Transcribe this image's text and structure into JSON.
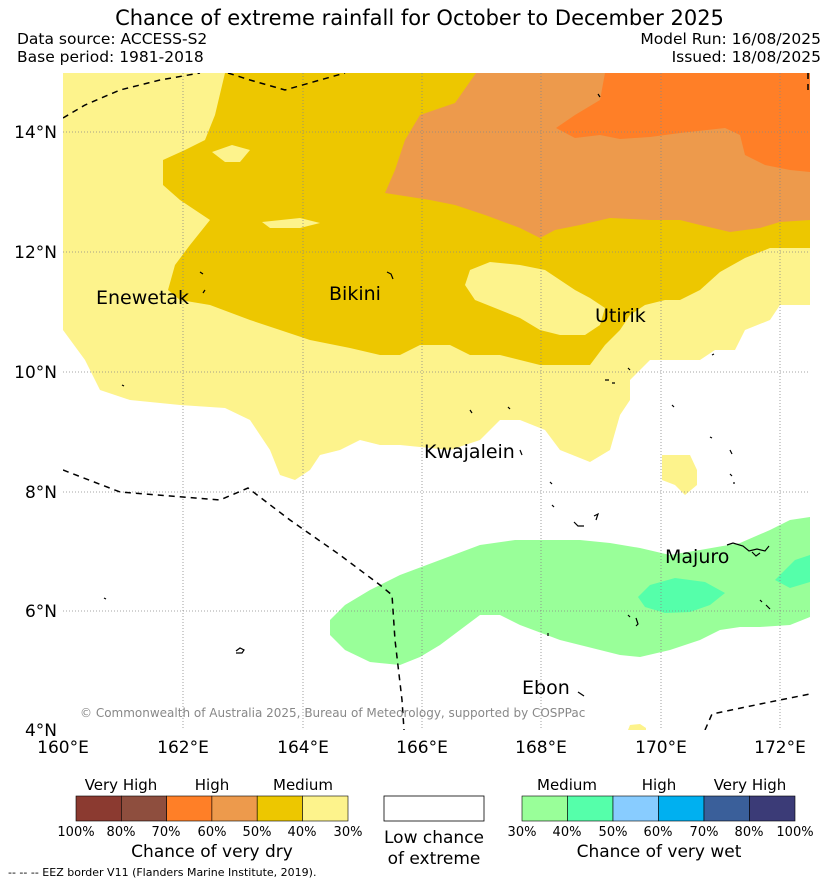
{
  "header": {
    "title": "Chance of extreme rainfall for October to December 2025",
    "data_source": "Data source: ACCESS-S2",
    "base_period": "Base period: 1981-2018",
    "model_run": "Model Run: 16/08/2025",
    "issued": "Issued: 18/08/2025"
  },
  "map": {
    "lat_ticks": [
      "14°N",
      "12°N",
      "10°N",
      "8°N",
      "6°N",
      "4°N"
    ],
    "lon_ticks": [
      "160°E",
      "162°E",
      "164°E",
      "166°E",
      "168°E",
      "170°E",
      "172°E"
    ],
    "places": {
      "enewetak": "Enewetak",
      "bikini": "Bikini",
      "utirik": "Utirik",
      "kwajalein": "Kwajalein",
      "majuro": "Majuro",
      "ebon": "Ebon"
    },
    "copyright": "© Commonwealth of Australia 2025, Bureau of Meteorology, supported by COSPPac"
  },
  "legend": {
    "dry": {
      "levels": [
        "Very High",
        "High",
        "Medium"
      ],
      "ticks": [
        "100%",
        "80%",
        "70%",
        "60%",
        "50%",
        "40%",
        "30%"
      ],
      "caption": "Chance of very dry",
      "colors": [
        "#8b3a30",
        "#8e4e3e",
        "#ff7f27",
        "#ed9a4c",
        "#edc700",
        "#fdf38c"
      ]
    },
    "low": {
      "caption_line1": "Low chance",
      "caption_line2": "of extreme"
    },
    "wet": {
      "levels": [
        "Medium",
        "High",
        "Very High"
      ],
      "ticks": [
        "30%",
        "40%",
        "50%",
        "60%",
        "70%",
        "80%",
        "100%"
      ],
      "caption": "Chance of very wet",
      "colors": [
        "#99ff99",
        "#55ffaa",
        "#88ccff",
        "#00b0f0",
        "#3a5f9a",
        "#3b3b77"
      ]
    },
    "eez_note": "-- -- -- EEZ border V11 (Flanders Marine Institute, 2019)."
  }
}
